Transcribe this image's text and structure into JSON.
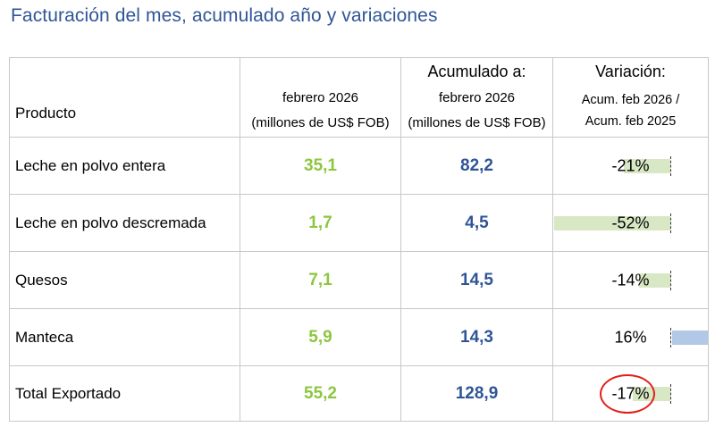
{
  "title": "Facturación del mes, acumulado año y variaciones",
  "header": {
    "product": "Producto",
    "month_line1": "febrero 2026",
    "month_line2": "(millones de US$ FOB)",
    "accum_title": "Acumulado a:",
    "accum_line1": "febrero 2026",
    "accum_line2": "(millones de US$ FOB)",
    "var_title": "Variación:",
    "var_line1": "Acum. feb 2026 /",
    "var_line2": "Acum. feb 2025"
  },
  "rows": [
    {
      "product": "Leche en polvo entera",
      "month": "35,1",
      "accum": "82,2",
      "variation": "-21%",
      "variation_value": -21
    },
    {
      "product": "Leche en polvo descremada",
      "month": "1,7",
      "accum": "4,5",
      "variation": "-52%",
      "variation_value": -52
    },
    {
      "product": "Quesos",
      "month": "7,1",
      "accum": "14,5",
      "variation": "-14%",
      "variation_value": -14
    },
    {
      "product": "Manteca",
      "month": "5,9",
      "accum": "14,3",
      "variation": "16%",
      "variation_value": 16
    },
    {
      "product": "Total Exportado",
      "month": "55,2",
      "accum": "128,9",
      "variation": "-17%",
      "variation_value": -17,
      "highlighted": true
    }
  ],
  "colors": {
    "title": "#2f5597",
    "month_values": "#8dc63f",
    "accum_values": "#2f5597",
    "negative_bar": "#d9e8c4",
    "positive_bar": "#b3c7e6",
    "highlight_circle": "#e0201b"
  }
}
